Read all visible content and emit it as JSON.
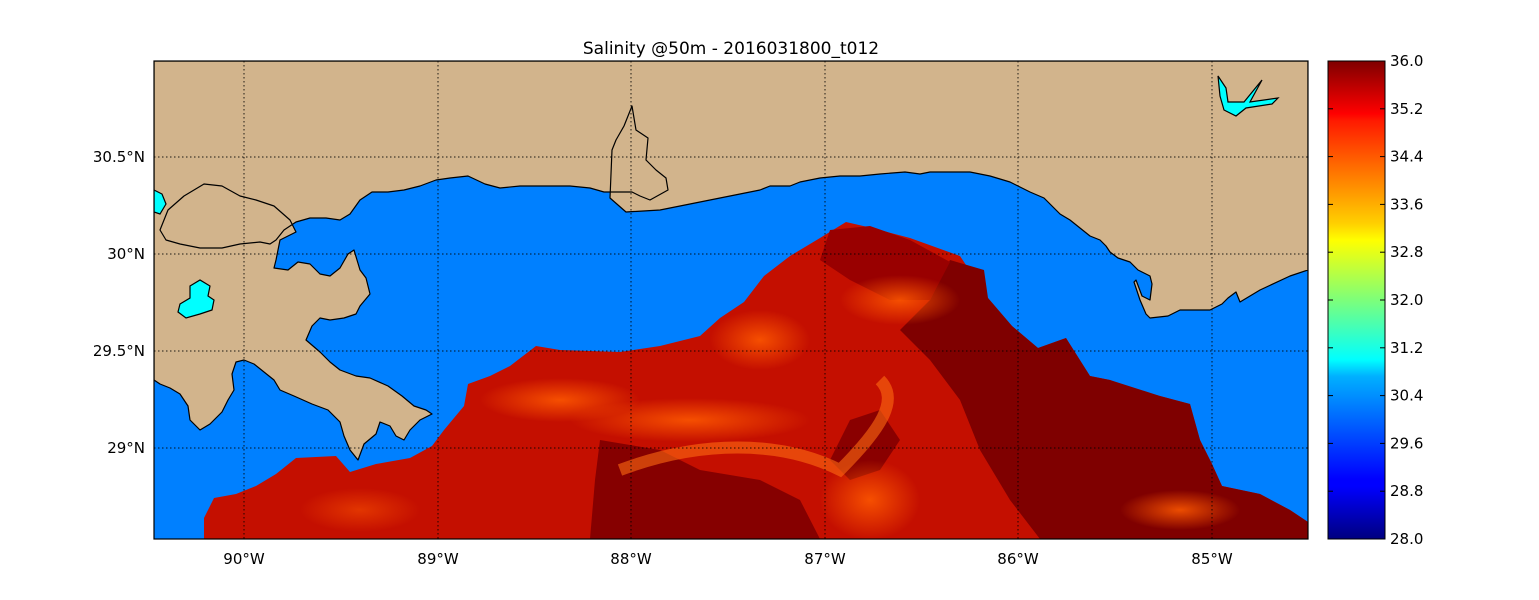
{
  "title": "Salinity @50m - 2016031800_t012",
  "map": {
    "lon_range": [
      -90.5,
      -84.5
    ],
    "lat_range": [
      28.55,
      31.0
    ],
    "grid": true,
    "land_color": "#d2b48c",
    "ocean_color": "#0080ff",
    "lake_color": "#00ffff",
    "coast_color": "#000000",
    "lon_ticks": [
      {
        "value": -90,
        "label": "90°W"
      },
      {
        "value": -89,
        "label": "89°W"
      },
      {
        "value": -88,
        "label": "88°W"
      },
      {
        "value": -87,
        "label": "87°W"
      },
      {
        "value": -86,
        "label": "86°W"
      },
      {
        "value": -85,
        "label": "85°W"
      }
    ],
    "lat_ticks": [
      {
        "value": 30.5,
        "label": "30.5°N"
      },
      {
        "value": 30.0,
        "label": "30°N"
      },
      {
        "value": 29.5,
        "label": "29.5°N"
      },
      {
        "value": 29.0,
        "label": "29°N"
      }
    ]
  },
  "colorbar": {
    "min": 28.0,
    "max": 36.0,
    "colormap": "jet",
    "ticks": [
      "28.0",
      "28.8",
      "29.6",
      "30.4",
      "31.2",
      "32.0",
      "32.8",
      "33.6",
      "34.4",
      "35.2",
      "36.0"
    ]
  }
}
